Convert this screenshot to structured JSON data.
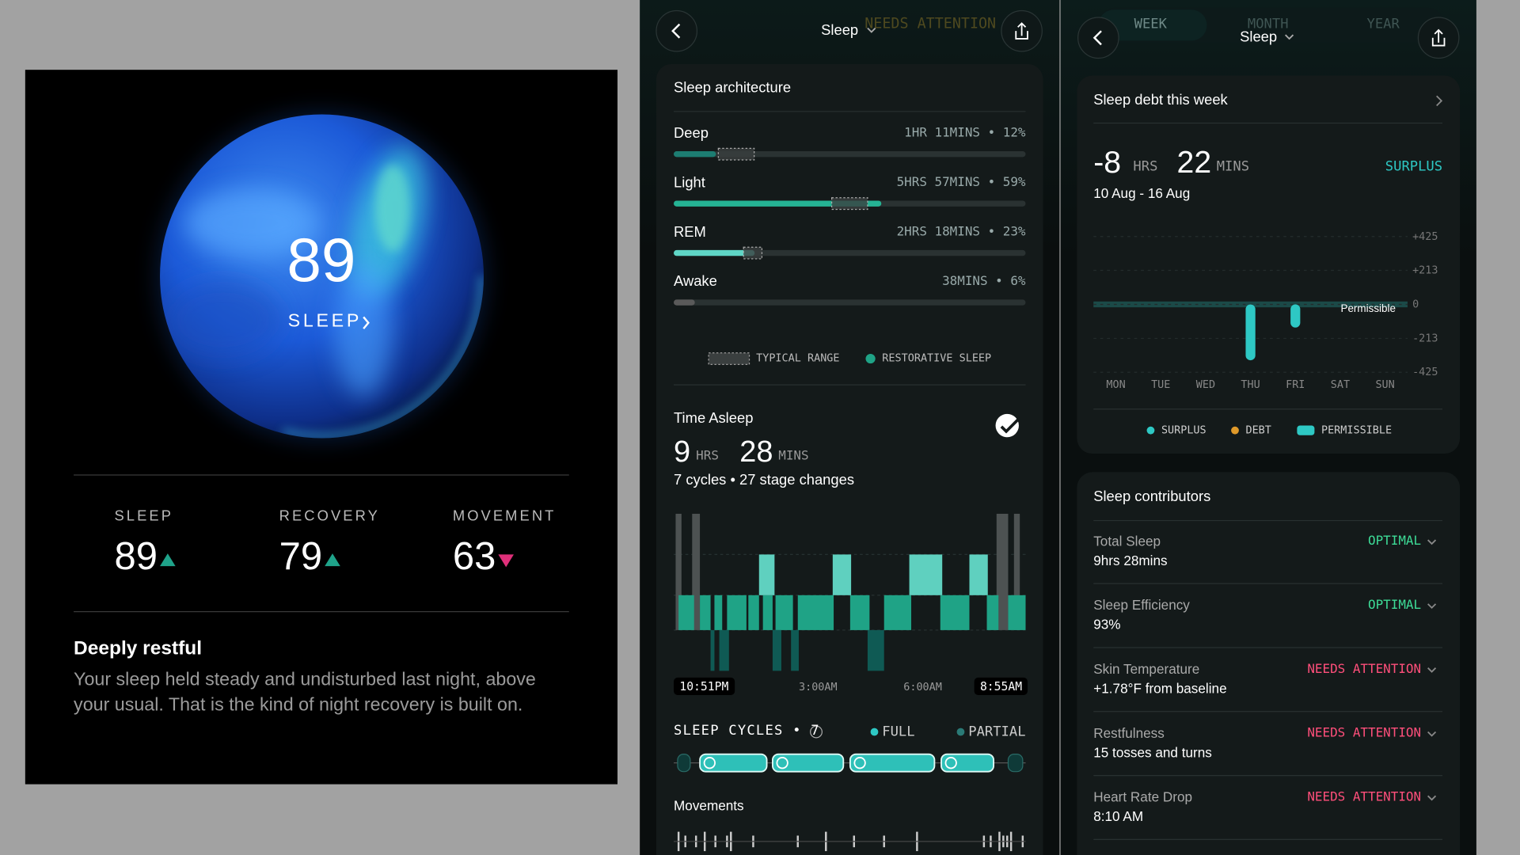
{
  "summary_card": {
    "score": 89,
    "score_label": "SLEEP",
    "metrics": [
      {
        "label": "SLEEP",
        "value": 89,
        "trend": "up",
        "color": "#1fa38a"
      },
      {
        "label": "RECOVERY",
        "value": 79,
        "trend": "up",
        "color": "#1fa38a"
      },
      {
        "label": "MOVEMENT",
        "value": 63,
        "trend": "down",
        "color": "#e0307a"
      }
    ],
    "headline": "Deeply restful",
    "body": "Your sleep held steady and undisturbed last night, above your usual. That is the kind of night recovery is built on."
  },
  "architecture_screen": {
    "nav_title": "Sleep",
    "overlay_text": "NEEDS ATTENTION",
    "card_title": "Sleep architecture",
    "stages": [
      {
        "name": "Deep",
        "percent": 12,
        "value_label": "1HR 11MINS • 12%",
        "color": "#1d7d72"
      },
      {
        "name": "Light",
        "percent": 59,
        "value_label": "5HRS 57MINS • 59%",
        "color": "#25b394"
      },
      {
        "name": "REM",
        "percent": 23,
        "value_label": "2HRS 18MINS • 23%",
        "color": "#5fd6c6"
      },
      {
        "name": "Awake",
        "percent": 6,
        "value_label": "38MINS • 6%",
        "color": "#5a5a5a"
      }
    ],
    "legend": [
      "TYPICAL RANGE",
      "RESTORATIVE SLEEP"
    ],
    "time_asleep": {
      "title": "Time Asleep",
      "hours": 9,
      "hours_unit": "HRS",
      "minutes": 28,
      "minutes_unit": "MINS",
      "subtitle": "7 cycles • 27 stage changes",
      "time_labels": [
        "10:51PM",
        "3:00AM",
        "6:00AM",
        "8:55AM"
      ]
    },
    "cycles": {
      "title": "SLEEP CYCLES • 7",
      "legend": [
        "FULL",
        "PARTIAL"
      ]
    },
    "movements_title": "Movements"
  },
  "debt_screen": {
    "tabs": [
      "WEEK",
      "MONTH",
      "YEAR"
    ],
    "nav_title": "Sleep",
    "card_title": "Sleep debt this week",
    "hours": -8,
    "hours_unit": "HRS",
    "minutes": 22,
    "minutes_unit": "MINS",
    "status": "SURPLUS",
    "date_range": "10 Aug - 16 Aug",
    "chart_data": {
      "type": "bar",
      "categories": [
        "MON",
        "TUE",
        "WED",
        "THU",
        "FRI",
        "SAT",
        "SUN"
      ],
      "values": [
        null,
        null,
        null,
        -350,
        -145,
        null,
        null
      ],
      "color": "#2ec8c4",
      "ylim": [
        -425,
        425
      ],
      "yticks": [
        {
          "value": 425,
          "label": "+425"
        },
        {
          "value": 213,
          "label": "+213"
        },
        0,
        -213,
        -425
      ],
      "grid": true,
      "annotation": "Permissible",
      "legend": [
        {
          "name": "SURPLUS",
          "color": "#2ec8c4"
        },
        {
          "name": "DEBT",
          "color": "#e09a2a"
        },
        {
          "name": "PERMISSIBLE",
          "color": "#2ec8c4"
        }
      ]
    },
    "contributors": {
      "title": "Sleep contributors",
      "rows": [
        {
          "name": "Total Sleep",
          "value": "9hrs 28mins",
          "status": "OPTIMAL",
          "color": "#3ddc97"
        },
        {
          "name": "Sleep Efficiency",
          "value": "93%",
          "status": "OPTIMAL",
          "color": "#3ddc97"
        },
        {
          "name": "Skin Temperature",
          "value": "+1.78°F from baseline",
          "status": "NEEDS ATTENTION",
          "color": "#ff4f7b"
        },
        {
          "name": "Restfulness",
          "value": "15 tosses and turns",
          "status": "NEEDS ATTENTION",
          "color": "#ff4f7b"
        },
        {
          "name": "Heart Rate Drop",
          "value": "8:10 AM",
          "status": "NEEDS ATTENTION",
          "color": "#ff4f7b"
        }
      ]
    }
  }
}
